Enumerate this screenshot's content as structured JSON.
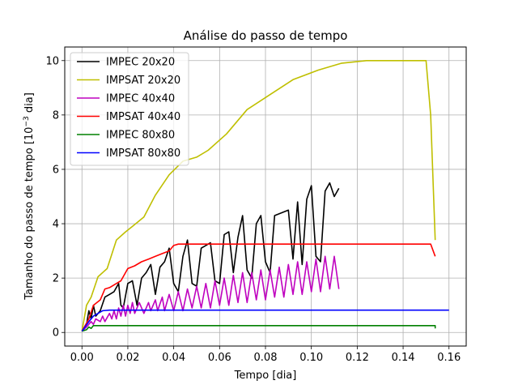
{
  "chart_data": {
    "type": "line",
    "title": "Análise do passo de tempo",
    "xlabel": "Tempo [dia]",
    "ylabel": "Tamanho do passo de tempo [10^{-3} dia]",
    "ylabel_main": "Tamanho do passo de tempo [10",
    "ylabel_exp": "−3",
    "ylabel_tail": " dia]",
    "xlim": [
      -0.0075,
      0.1675
    ],
    "ylim": [
      -0.5,
      10.5
    ],
    "xticks": [
      0.0,
      0.02,
      0.04,
      0.06,
      0.08,
      0.1,
      0.12,
      0.14,
      0.16
    ],
    "xtick_labels": [
      "0.00",
      "0.02",
      "0.04",
      "0.06",
      "0.08",
      "0.10",
      "0.12",
      "0.14",
      "0.16"
    ],
    "yticks": [
      0,
      2,
      4,
      6,
      8,
      10
    ],
    "ytick_labels": [
      "0",
      "2",
      "4",
      "6",
      "8",
      "10"
    ],
    "grid": true,
    "legend_position": "top-left",
    "series": [
      {
        "name": "IMPEC 20x20",
        "color": "#000000",
        "points": [
          [
            0.0,
            0.05
          ],
          [
            0.002,
            0.3
          ],
          [
            0.003,
            0.8
          ],
          [
            0.004,
            0.5
          ],
          [
            0.005,
            1.0
          ],
          [
            0.006,
            0.6
          ],
          [
            0.008,
            0.8
          ],
          [
            0.01,
            1.3
          ],
          [
            0.012,
            1.4
          ],
          [
            0.014,
            1.5
          ],
          [
            0.016,
            1.8
          ],
          [
            0.017,
            1.0
          ],
          [
            0.018,
            0.9
          ],
          [
            0.02,
            1.8
          ],
          [
            0.022,
            1.9
          ],
          [
            0.024,
            1.0
          ],
          [
            0.026,
            2.0
          ],
          [
            0.028,
            2.2
          ],
          [
            0.03,
            2.5
          ],
          [
            0.032,
            1.4
          ],
          [
            0.034,
            2.4
          ],
          [
            0.036,
            2.6
          ],
          [
            0.038,
            3.1
          ],
          [
            0.04,
            1.8
          ],
          [
            0.042,
            1.5
          ],
          [
            0.044,
            2.8
          ],
          [
            0.046,
            3.4
          ],
          [
            0.048,
            1.8
          ],
          [
            0.05,
            1.7
          ],
          [
            0.052,
            3.1
          ],
          [
            0.054,
            3.2
          ],
          [
            0.056,
            3.3
          ],
          [
            0.058,
            1.9
          ],
          [
            0.06,
            1.8
          ],
          [
            0.062,
            3.6
          ],
          [
            0.064,
            3.7
          ],
          [
            0.066,
            2.2
          ],
          [
            0.068,
            3.5
          ],
          [
            0.07,
            4.3
          ],
          [
            0.072,
            2.3
          ],
          [
            0.074,
            2.0
          ],
          [
            0.076,
            4.0
          ],
          [
            0.078,
            4.3
          ],
          [
            0.08,
            2.6
          ],
          [
            0.082,
            2.2
          ],
          [
            0.084,
            4.3
          ],
          [
            0.09,
            4.5
          ],
          [
            0.092,
            2.7
          ],
          [
            0.094,
            4.8
          ],
          [
            0.096,
            2.5
          ],
          [
            0.098,
            4.9
          ],
          [
            0.1,
            5.4
          ],
          [
            0.102,
            2.8
          ],
          [
            0.104,
            2.6
          ],
          [
            0.106,
            5.2
          ],
          [
            0.108,
            5.5
          ],
          [
            0.11,
            5.0
          ],
          [
            0.112,
            5.3
          ]
        ]
      },
      {
        "name": "IMPSAT 20x20",
        "color": "#bfbf00",
        "points": [
          [
            0.0,
            0.05
          ],
          [
            0.002,
            1.0
          ],
          [
            0.004,
            1.3
          ],
          [
            0.007,
            2.05
          ],
          [
            0.011,
            2.35
          ],
          [
            0.015,
            3.4
          ],
          [
            0.019,
            3.7
          ],
          [
            0.022,
            3.9
          ],
          [
            0.027,
            4.25
          ],
          [
            0.032,
            5.05
          ],
          [
            0.038,
            5.8
          ],
          [
            0.044,
            6.3
          ],
          [
            0.05,
            6.45
          ],
          [
            0.055,
            6.7
          ],
          [
            0.063,
            7.3
          ],
          [
            0.072,
            8.2
          ],
          [
            0.082,
            8.75
          ],
          [
            0.092,
            9.3
          ],
          [
            0.103,
            9.65
          ],
          [
            0.113,
            9.9
          ],
          [
            0.124,
            10.0
          ],
          [
            0.15,
            10.0
          ],
          [
            0.152,
            8.0
          ],
          [
            0.154,
            3.4
          ]
        ]
      },
      {
        "name": "IMPEC 40x40",
        "color": "#bf00bf",
        "points": [
          [
            0.0,
            0.05
          ],
          [
            0.002,
            0.2
          ],
          [
            0.004,
            0.4
          ],
          [
            0.005,
            0.3
          ],
          [
            0.006,
            0.5
          ],
          [
            0.008,
            0.4
          ],
          [
            0.009,
            0.6
          ],
          [
            0.01,
            0.4
          ],
          [
            0.012,
            0.7
          ],
          [
            0.013,
            0.5
          ],
          [
            0.014,
            0.8
          ],
          [
            0.015,
            0.5
          ],
          [
            0.016,
            0.9
          ],
          [
            0.017,
            0.6
          ],
          [
            0.018,
            1.0
          ],
          [
            0.019,
            0.6
          ],
          [
            0.02,
            1.0
          ],
          [
            0.021,
            0.7
          ],
          [
            0.022,
            1.1
          ],
          [
            0.023,
            0.7
          ],
          [
            0.025,
            1.1
          ],
          [
            0.027,
            0.7
          ],
          [
            0.029,
            1.1
          ],
          [
            0.03,
            0.8
          ],
          [
            0.032,
            1.2
          ],
          [
            0.033,
            0.8
          ],
          [
            0.035,
            1.3
          ],
          [
            0.036,
            0.8
          ],
          [
            0.038,
            1.4
          ],
          [
            0.04,
            0.8
          ],
          [
            0.042,
            1.5
          ],
          [
            0.044,
            0.8
          ],
          [
            0.046,
            1.6
          ],
          [
            0.048,
            0.9
          ],
          [
            0.05,
            1.7
          ],
          [
            0.052,
            0.9
          ],
          [
            0.054,
            1.8
          ],
          [
            0.056,
            0.9
          ],
          [
            0.058,
            1.9
          ],
          [
            0.06,
            1.0
          ],
          [
            0.062,
            2.0
          ],
          [
            0.064,
            1.0
          ],
          [
            0.066,
            2.1
          ],
          [
            0.068,
            1.1
          ],
          [
            0.07,
            2.2
          ],
          [
            0.072,
            1.1
          ],
          [
            0.074,
            2.2
          ],
          [
            0.076,
            1.2
          ],
          [
            0.078,
            2.3
          ],
          [
            0.08,
            1.2
          ],
          [
            0.082,
            2.3
          ],
          [
            0.084,
            1.3
          ],
          [
            0.086,
            2.4
          ],
          [
            0.088,
            1.3
          ],
          [
            0.09,
            2.5
          ],
          [
            0.092,
            1.4
          ],
          [
            0.094,
            2.6
          ],
          [
            0.096,
            1.4
          ],
          [
            0.098,
            2.6
          ],
          [
            0.1,
            1.5
          ],
          [
            0.102,
            2.7
          ],
          [
            0.104,
            1.5
          ],
          [
            0.106,
            2.8
          ],
          [
            0.108,
            1.6
          ],
          [
            0.11,
            2.8
          ],
          [
            0.112,
            1.6
          ]
        ]
      },
      {
        "name": "IMPSAT 40x40",
        "color": "#ff0000",
        "points": [
          [
            0.0,
            0.05
          ],
          [
            0.003,
            0.5
          ],
          [
            0.005,
            1.0
          ],
          [
            0.008,
            1.2
          ],
          [
            0.01,
            1.6
          ],
          [
            0.012,
            1.65
          ],
          [
            0.015,
            1.8
          ],
          [
            0.017,
            1.9
          ],
          [
            0.02,
            2.35
          ],
          [
            0.023,
            2.45
          ],
          [
            0.026,
            2.6
          ],
          [
            0.029,
            2.7
          ],
          [
            0.032,
            2.8
          ],
          [
            0.035,
            2.9
          ],
          [
            0.038,
            3.0
          ],
          [
            0.04,
            3.2
          ],
          [
            0.042,
            3.25
          ],
          [
            0.05,
            3.25
          ],
          [
            0.152,
            3.25
          ],
          [
            0.154,
            2.8
          ]
        ]
      },
      {
        "name": "IMPEC 80x80",
        "color": "#008000",
        "points": [
          [
            0.0,
            0.05
          ],
          [
            0.002,
            0.1
          ],
          [
            0.003,
            0.2
          ],
          [
            0.004,
            0.15
          ],
          [
            0.005,
            0.25
          ],
          [
            0.006,
            0.25
          ],
          [
            0.154,
            0.25
          ],
          [
            0.154,
            0.15
          ]
        ]
      },
      {
        "name": "IMPSAT 80x80",
        "color": "#0000ff",
        "points": [
          [
            0.0,
            0.05
          ],
          [
            0.003,
            0.4
          ],
          [
            0.005,
            0.6
          ],
          [
            0.007,
            0.7
          ],
          [
            0.009,
            0.8
          ],
          [
            0.012,
            0.82
          ],
          [
            0.16,
            0.82
          ]
        ]
      }
    ]
  }
}
